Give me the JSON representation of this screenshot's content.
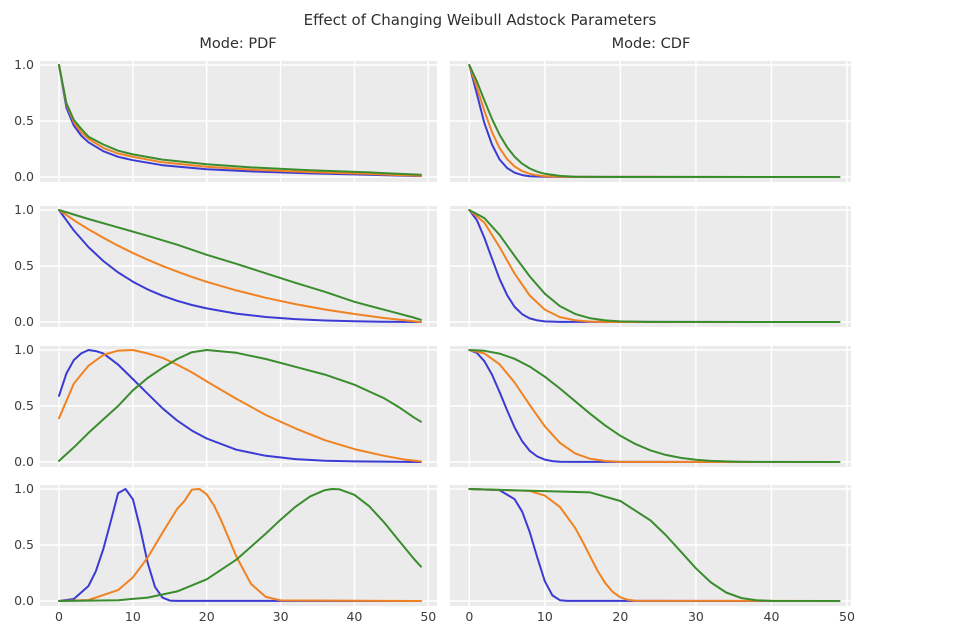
{
  "title": "Effect of Changing Weibull Adstock Parameters",
  "columns": [
    {
      "title": "Mode: PDF"
    },
    {
      "title": "Mode: CDF"
    }
  ],
  "colors": {
    "line_blue": "#3b3bd4",
    "line_orange": "#f08222",
    "line_green": "#3a8c2e",
    "axes_bg": "#ebebeb",
    "grid": "#ffffff",
    "tick_text": "#3d3d3d",
    "title_text": "#2e2e2e"
  },
  "axes": {
    "x_ticks": [
      0,
      10,
      20,
      30,
      40,
      50
    ],
    "y_tick_labels": [
      "1.0",
      "0.5",
      "0.0"
    ],
    "y_tick_values": [
      1,
      0.5,
      0
    ],
    "x_range_shown": [
      0,
      50
    ],
    "y_range_shown": [
      0,
      1
    ],
    "grid": true,
    "legend": "none"
  },
  "chart_data": [
    {
      "id": "row1-pdf",
      "type": "line",
      "mode": "PDF",
      "row": 1,
      "series": [
        {
          "color_key": "line_blue",
          "x": [
            0,
            1,
            2,
            3,
            4,
            6,
            8,
            10,
            14,
            20,
            26,
            34,
            42,
            49
          ],
          "y": [
            1,
            0.62,
            0.46,
            0.37,
            0.31,
            0.23,
            0.18,
            0.15,
            0.105,
            0.07,
            0.05,
            0.032,
            0.02,
            0.008
          ]
        },
        {
          "color_key": "line_orange",
          "x": [
            0,
            1,
            2,
            3,
            4,
            6,
            8,
            10,
            14,
            20,
            26,
            34,
            42,
            49
          ],
          "y": [
            1,
            0.65,
            0.49,
            0.4,
            0.34,
            0.26,
            0.21,
            0.18,
            0.131,
            0.091,
            0.066,
            0.044,
            0.028,
            0.01
          ]
        },
        {
          "color_key": "line_green",
          "x": [
            0,
            1,
            2,
            3,
            4,
            6,
            8,
            10,
            14,
            20,
            26,
            34,
            42,
            49
          ],
          "y": [
            1,
            0.66,
            0.51,
            0.43,
            0.36,
            0.29,
            0.235,
            0.202,
            0.155,
            0.113,
            0.086,
            0.061,
            0.041,
            0.02
          ]
        }
      ]
    },
    {
      "id": "row1-cdf",
      "type": "line",
      "mode": "CDF",
      "row": 1,
      "series": [
        {
          "color_key": "line_blue",
          "x": [
            0,
            1,
            2,
            3,
            4,
            5,
            6,
            7,
            8,
            10,
            12,
            49
          ],
          "y": [
            1,
            0.74,
            0.48,
            0.29,
            0.157,
            0.08,
            0.038,
            0.017,
            0.007,
            0.002,
            0.001,
            0
          ]
        },
        {
          "color_key": "line_orange",
          "x": [
            0,
            1,
            2,
            3,
            4,
            5,
            6,
            7,
            8,
            9,
            10,
            12,
            14,
            49
          ],
          "y": [
            1,
            0.8,
            0.59,
            0.4,
            0.26,
            0.16,
            0.094,
            0.053,
            0.029,
            0.015,
            0.007,
            0.002,
            0.001,
            0
          ]
        },
        {
          "color_key": "line_green",
          "x": [
            0,
            1,
            2,
            3,
            4,
            5,
            6,
            7,
            8,
            9,
            10,
            12,
            14,
            16,
            18,
            49
          ],
          "y": [
            1,
            0.854,
            0.683,
            0.519,
            0.379,
            0.266,
            0.18,
            0.119,
            0.076,
            0.047,
            0.029,
            0.01,
            0.003,
            0.001,
            0,
            0
          ]
        }
      ]
    },
    {
      "id": "row2-pdf",
      "type": "line",
      "mode": "PDF",
      "row": 2,
      "series": [
        {
          "color_key": "line_blue",
          "x": [
            0,
            2,
            4,
            6,
            8,
            10,
            12,
            14,
            16,
            18,
            20,
            24,
            28,
            32,
            36,
            40,
            44,
            49
          ],
          "y": [
            1,
            0.818,
            0.669,
            0.545,
            0.443,
            0.36,
            0.291,
            0.235,
            0.189,
            0.152,
            0.121,
            0.075,
            0.045,
            0.026,
            0.013,
            0.006,
            0.002,
            0
          ]
        },
        {
          "color_key": "line_orange",
          "x": [
            0,
            2,
            4,
            6,
            8,
            10,
            12,
            14,
            16,
            18,
            20,
            24,
            28,
            32,
            36,
            40,
            44,
            49
          ],
          "y": [
            1,
            0.91,
            0.828,
            0.752,
            0.681,
            0.616,
            0.556,
            0.501,
            0.45,
            0.403,
            0.359,
            0.282,
            0.216,
            0.16,
            0.112,
            0.071,
            0.036,
            0
          ]
        },
        {
          "color_key": "line_green",
          "x": [
            0,
            4,
            8,
            12,
            16,
            20,
            24,
            28,
            32,
            36,
            40,
            44,
            48,
            49
          ],
          "y": [
            1,
            0.92,
            0.845,
            0.77,
            0.69,
            0.6,
            0.52,
            0.435,
            0.35,
            0.27,
            0.18,
            0.11,
            0.04,
            0.02
          ]
        }
      ]
    },
    {
      "id": "row2-cdf",
      "type": "line",
      "mode": "CDF",
      "row": 2,
      "series": [
        {
          "color_key": "line_blue",
          "x": [
            0,
            1,
            2,
            3,
            4,
            5,
            6,
            7,
            8,
            9,
            10,
            12,
            49
          ],
          "y": [
            1,
            0.909,
            0.751,
            0.565,
            0.386,
            0.24,
            0.135,
            0.07,
            0.032,
            0.014,
            0.005,
            0.001,
            0
          ]
        },
        {
          "color_key": "line_orange",
          "x": [
            0,
            2,
            4,
            6,
            8,
            10,
            12,
            14,
            16,
            18,
            20,
            49
          ],
          "y": [
            1,
            0.887,
            0.67,
            0.432,
            0.237,
            0.111,
            0.044,
            0.015,
            0.004,
            0.001,
            0,
            0
          ]
        },
        {
          "color_key": "line_green",
          "x": [
            0,
            2,
            4,
            6,
            8,
            10,
            12,
            14,
            16,
            18,
            20,
            24,
            49
          ],
          "y": [
            1,
            0.928,
            0.779,
            0.59,
            0.407,
            0.253,
            0.142,
            0.072,
            0.033,
            0.014,
            0.005,
            0.001,
            0
          ]
        }
      ]
    },
    {
      "id": "row3-pdf",
      "type": "line",
      "mode": "PDF",
      "row": 3,
      "series": [
        {
          "color_key": "line_blue",
          "x": [
            0,
            1,
            2,
            3,
            4,
            5,
            6,
            8,
            10,
            12,
            14,
            16,
            18,
            20,
            24,
            28,
            32,
            36,
            40,
            49
          ],
          "y": [
            0.59,
            0.79,
            0.91,
            0.97,
            1,
            0.99,
            0.97,
            0.87,
            0.74,
            0.61,
            0.48,
            0.37,
            0.28,
            0.21,
            0.11,
            0.055,
            0.026,
            0.012,
            0.005,
            0
          ]
        },
        {
          "color_key": "line_orange",
          "x": [
            0,
            2,
            4,
            6,
            8,
            10,
            12,
            14,
            16,
            18,
            20,
            24,
            28,
            32,
            36,
            40,
            44,
            47,
            49
          ],
          "y": [
            0.39,
            0.7,
            0.86,
            0.955,
            0.995,
            1,
            0.97,
            0.93,
            0.87,
            0.8,
            0.72,
            0.565,
            0.42,
            0.3,
            0.195,
            0.115,
            0.055,
            0.02,
            0.005
          ]
        },
        {
          "color_key": "line_green",
          "x": [
            0,
            2,
            4,
            6,
            8,
            10,
            12,
            14,
            16,
            18,
            20,
            24,
            28,
            32,
            36,
            40,
            44,
            46,
            48,
            49
          ],
          "y": [
            0.01,
            0.13,
            0.26,
            0.38,
            0.5,
            0.64,
            0.75,
            0.84,
            0.92,
            0.98,
            1,
            0.975,
            0.92,
            0.85,
            0.78,
            0.69,
            0.57,
            0.49,
            0.4,
            0.36
          ]
        }
      ]
    },
    {
      "id": "row3-cdf",
      "type": "line",
      "mode": "CDF",
      "row": 3,
      "series": [
        {
          "color_key": "line_blue",
          "x": [
            0,
            1,
            2,
            3,
            4,
            5,
            6,
            7,
            8,
            9,
            10,
            11,
            12,
            14,
            49
          ],
          "y": [
            1,
            0.973,
            0.9,
            0.78,
            0.627,
            0.462,
            0.308,
            0.185,
            0.1,
            0.049,
            0.021,
            0.008,
            0.003,
            0.001,
            0
          ]
        },
        {
          "color_key": "line_orange",
          "x": [
            0,
            2,
            4,
            6,
            8,
            10,
            12,
            14,
            16,
            18,
            20,
            22,
            49
          ],
          "y": [
            1,
            0.97,
            0.873,
            0.71,
            0.51,
            0.319,
            0.171,
            0.077,
            0.029,
            0.009,
            0.002,
            0.001,
            0
          ]
        },
        {
          "color_key": "line_green",
          "x": [
            0,
            2,
            4,
            6,
            8,
            10,
            12,
            14,
            16,
            18,
            20,
            22,
            24,
            26,
            28,
            30,
            32,
            34,
            36,
            38,
            49
          ],
          "y": [
            1,
            0.993,
            0.968,
            0.921,
            0.852,
            0.762,
            0.656,
            0.543,
            0.43,
            0.325,
            0.234,
            0.16,
            0.104,
            0.063,
            0.037,
            0.02,
            0.01,
            0.005,
            0.002,
            0.001,
            0
          ]
        }
      ]
    },
    {
      "id": "row4-pdf",
      "type": "line",
      "mode": "PDF",
      "row": 4,
      "series": [
        {
          "color_key": "line_blue",
          "x": [
            0,
            2,
            4,
            5,
            6,
            7,
            8,
            9,
            10,
            11,
            12,
            13,
            14,
            15,
            16,
            49
          ],
          "y": [
            0,
            0.018,
            0.134,
            0.267,
            0.463,
            0.709,
            0.963,
            1,
            0.908,
            0.648,
            0.344,
            0.126,
            0.03,
            0.004,
            0.001,
            0
          ]
        },
        {
          "color_key": "line_orange",
          "x": [
            0,
            4,
            8,
            10,
            12,
            14,
            16,
            17,
            18,
            19,
            20,
            21,
            22,
            24,
            26,
            28,
            30,
            49
          ],
          "y": [
            0,
            0.009,
            0.097,
            0.211,
            0.387,
            0.608,
            0.822,
            0.895,
            0.995,
            1,
            0.953,
            0.852,
            0.713,
            0.398,
            0.153,
            0.037,
            0.005,
            0
          ]
        },
        {
          "color_key": "line_green",
          "x": [
            0,
            8,
            12,
            16,
            20,
            24,
            28,
            30,
            32,
            34,
            36,
            37,
            38,
            40,
            42,
            44,
            46,
            48,
            49
          ],
          "y": [
            0,
            0.007,
            0.03,
            0.086,
            0.194,
            0.369,
            0.602,
            0.726,
            0.841,
            0.934,
            0.99,
            1,
            0.996,
            0.948,
            0.846,
            0.703,
            0.54,
            0.38,
            0.307
          ]
        }
      ]
    },
    {
      "id": "row4-cdf",
      "type": "line",
      "mode": "CDF",
      "row": 4,
      "series": [
        {
          "color_key": "line_blue",
          "x": [
            0,
            4,
            6,
            7,
            8,
            9,
            10,
            11,
            12,
            13,
            49
          ],
          "y": [
            1,
            0.99,
            0.909,
            0.797,
            0.616,
            0.388,
            0.177,
            0.05,
            0.007,
            0.001,
            0
          ]
        },
        {
          "color_key": "line_orange",
          "x": [
            0,
            8,
            10,
            12,
            14,
            15,
            16,
            17,
            18,
            19,
            20,
            21,
            22,
            49
          ],
          "y": [
            1,
            0.983,
            0.941,
            0.84,
            0.654,
            0.53,
            0.397,
            0.268,
            0.159,
            0.08,
            0.033,
            0.011,
            0.003,
            0
          ]
        },
        {
          "color_key": "line_green",
          "x": [
            0,
            16,
            20,
            24,
            26,
            28,
            30,
            32,
            34,
            36,
            38,
            40,
            49
          ],
          "y": [
            1,
            0.97,
            0.893,
            0.719,
            0.589,
            0.441,
            0.292,
            0.165,
            0.076,
            0.027,
            0.007,
            0.001,
            0
          ]
        }
      ]
    }
  ]
}
